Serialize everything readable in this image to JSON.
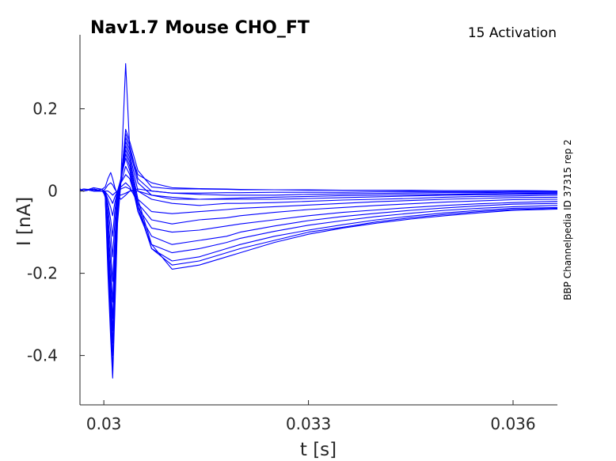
{
  "chart_data": {
    "type": "line",
    "title": "Nav1.7  Mouse  CHO_FT",
    "subtitle": "15  Activation",
    "side_label": "BBP Channelpedia ID 37315 rep 2",
    "xlabel": "t [s]",
    "ylabel": "I [nA]",
    "xlim": [
      0.02965,
      0.03665
    ],
    "ylim": [
      -0.52,
      0.38
    ],
    "xticks": [
      0.03,
      0.033,
      0.036
    ],
    "xtick_labels": [
      "0.03",
      "0.033",
      "0.036"
    ],
    "yticks": [
      -0.4,
      -0.2,
      0,
      0.2
    ],
    "ytick_labels": [
      "-0.4",
      "-0.2",
      "0",
      "0.2"
    ],
    "grid": false,
    "line_color": "#0000ff",
    "series": [
      {
        "x": [
          0.02965,
          0.0297,
          0.02985,
          0.02998,
          0.03002,
          0.03006,
          0.0301,
          0.03013,
          0.03016,
          0.0302,
          0.03025,
          0.03032,
          0.03038,
          0.0305,
          0.0307,
          0.031,
          0.0314,
          0.0318,
          0.032,
          0.0325,
          0.033,
          0.0335,
          0.034,
          0.0345,
          0.035,
          0.0355,
          0.036,
          0.03665
        ],
        "y": [
          0.005,
          0.0,
          0.008,
          0.004,
          -0.015,
          -0.2,
          -0.36,
          -0.455,
          -0.3,
          -0.08,
          0.02,
          0.15,
          0.12,
          0.05,
          0.01,
          0.005,
          0.005,
          0.004,
          0.003,
          0.003,
          0.002,
          0.002,
          0.002,
          0.002,
          0.001,
          0.001,
          0.001,
          0.0
        ]
      },
      {
        "x": [
          0.02965,
          0.0297,
          0.02985,
          0.02998,
          0.03002,
          0.03006,
          0.0301,
          0.03013,
          0.03016,
          0.0302,
          0.03025,
          0.03032,
          0.03038,
          0.0305,
          0.0307,
          0.031,
          0.0314,
          0.0318,
          0.032,
          0.0325,
          0.033,
          0.0335,
          0.034,
          0.0345,
          0.035,
          0.0355,
          0.036,
          0.03665
        ],
        "y": [
          0.0,
          0.005,
          0.003,
          0.0,
          -0.012,
          -0.18,
          -0.34,
          -0.43,
          -0.28,
          -0.07,
          0.03,
          0.31,
          0.1,
          0.04,
          0.02,
          0.008,
          0.006,
          0.005,
          0.004,
          0.003,
          0.003,
          0.002,
          0.002,
          0.001,
          0.001,
          0.001,
          0.001,
          0.0
        ]
      },
      {
        "x": [
          0.02965,
          0.0297,
          0.02985,
          0.02998,
          0.03002,
          0.03006,
          0.0301,
          0.03013,
          0.03016,
          0.0302,
          0.03025,
          0.03032,
          0.03038,
          0.0305,
          0.0307,
          0.031,
          0.0314,
          0.0318,
          0.032,
          0.0325,
          0.033,
          0.0335,
          0.034,
          0.0345,
          0.035,
          0.0355,
          0.036,
          0.03665
        ],
        "y": [
          0.005,
          0.0,
          0.005,
          0.0,
          -0.01,
          -0.16,
          -0.31,
          -0.4,
          -0.25,
          -0.06,
          0.03,
          0.14,
          0.11,
          0.03,
          0.0,
          -0.005,
          -0.008,
          -0.01,
          -0.01,
          -0.01,
          -0.008,
          -0.007,
          -0.006,
          -0.005,
          -0.004,
          -0.004,
          -0.003,
          -0.003
        ]
      },
      {
        "x": [
          0.02965,
          0.0297,
          0.02985,
          0.02998,
          0.03002,
          0.03006,
          0.0301,
          0.03013,
          0.03016,
          0.0302,
          0.03025,
          0.03032,
          0.03038,
          0.0305,
          0.0307,
          0.031,
          0.0314,
          0.0318,
          0.032,
          0.0325,
          0.033,
          0.0335,
          0.034,
          0.0345,
          0.035,
          0.0355,
          0.036,
          0.03665
        ],
        "y": [
          0.0,
          0.005,
          0.0,
          0.0,
          -0.01,
          -0.14,
          -0.28,
          -0.37,
          -0.22,
          -0.05,
          0.03,
          0.13,
          0.1,
          0.02,
          -0.01,
          -0.015,
          -0.02,
          -0.02,
          -0.02,
          -0.02,
          -0.018,
          -0.016,
          -0.014,
          -0.012,
          -0.01,
          -0.009,
          -0.008,
          -0.007
        ]
      },
      {
        "x": [
          0.02965,
          0.0297,
          0.02985,
          0.02998,
          0.03002,
          0.03006,
          0.0301,
          0.03013,
          0.03016,
          0.0302,
          0.03025,
          0.03032,
          0.03038,
          0.0305,
          0.0307,
          0.031,
          0.0314,
          0.0318,
          0.032,
          0.0325,
          0.033,
          0.0335,
          0.034,
          0.0345,
          0.035,
          0.0355,
          0.036,
          0.03665
        ],
        "y": [
          0.005,
          0.0,
          0.005,
          0.0,
          -0.01,
          -0.12,
          -0.25,
          -0.34,
          -0.2,
          -0.04,
          0.03,
          0.12,
          0.09,
          0.0,
          -0.02,
          -0.03,
          -0.035,
          -0.03,
          -0.03,
          -0.028,
          -0.025,
          -0.022,
          -0.02,
          -0.018,
          -0.015,
          -0.013,
          -0.012,
          -0.01
        ]
      },
      {
        "x": [
          0.02965,
          0.0297,
          0.02985,
          0.02998,
          0.03002,
          0.03006,
          0.0301,
          0.03013,
          0.03016,
          0.0302,
          0.03025,
          0.03032,
          0.03038,
          0.0305,
          0.0307,
          0.031,
          0.0314,
          0.0318,
          0.032,
          0.0325,
          0.033,
          0.0335,
          0.034,
          0.0345,
          0.035,
          0.0355,
          0.036,
          0.03665
        ],
        "y": [
          0.0,
          0.005,
          0.0,
          0.0,
          -0.008,
          -0.1,
          -0.22,
          -0.31,
          -0.18,
          -0.03,
          0.03,
          0.11,
          0.08,
          -0.02,
          -0.05,
          -0.055,
          -0.05,
          -0.045,
          -0.042,
          -0.038,
          -0.034,
          -0.03,
          -0.026,
          -0.023,
          -0.02,
          -0.018,
          -0.016,
          -0.015
        ]
      },
      {
        "x": [
          0.02965,
          0.0297,
          0.02985,
          0.02998,
          0.03002,
          0.03006,
          0.0301,
          0.03013,
          0.03016,
          0.0302,
          0.03025,
          0.03032,
          0.03038,
          0.0305,
          0.0307,
          0.031,
          0.0314,
          0.0318,
          0.032,
          0.0325,
          0.033,
          0.0335,
          0.034,
          0.0345,
          0.035,
          0.0355,
          0.036,
          0.03665
        ],
        "y": [
          0.005,
          0.0,
          0.005,
          0.0,
          -0.008,
          -0.08,
          -0.18,
          -0.27,
          -0.15,
          -0.02,
          0.03,
          0.1,
          0.07,
          -0.03,
          -0.07,
          -0.08,
          -0.07,
          -0.065,
          -0.06,
          -0.052,
          -0.045,
          -0.04,
          -0.035,
          -0.031,
          -0.027,
          -0.024,
          -0.021,
          -0.02
        ]
      },
      {
        "x": [
          0.02965,
          0.0297,
          0.02985,
          0.02998,
          0.03002,
          0.03006,
          0.0301,
          0.03013,
          0.03016,
          0.0302,
          0.03025,
          0.03032,
          0.03038,
          0.0305,
          0.0307,
          0.031,
          0.0314,
          0.0318,
          0.032,
          0.0325,
          0.033,
          0.0335,
          0.034,
          0.0345,
          0.035,
          0.0355,
          0.036,
          0.03665
        ],
        "y": [
          0.0,
          0.005,
          0.0,
          0.0,
          -0.006,
          -0.06,
          -0.14,
          -0.22,
          -0.12,
          -0.01,
          0.03,
          0.09,
          0.06,
          -0.04,
          -0.09,
          -0.1,
          -0.095,
          -0.085,
          -0.08,
          -0.07,
          -0.06,
          -0.052,
          -0.046,
          -0.04,
          -0.035,
          -0.031,
          -0.028,
          -0.025
        ]
      },
      {
        "x": [
          0.02965,
          0.0297,
          0.02985,
          0.02998,
          0.03002,
          0.03006,
          0.0301,
          0.03013,
          0.03016,
          0.0302,
          0.03025,
          0.03032,
          0.03038,
          0.0305,
          0.0307,
          0.031,
          0.0314,
          0.0318,
          0.032,
          0.0325,
          0.033,
          0.0335,
          0.034,
          0.0345,
          0.035,
          0.0355,
          0.036,
          0.03665
        ],
        "y": [
          0.005,
          0.0,
          0.005,
          0.0,
          -0.005,
          -0.04,
          -0.1,
          -0.16,
          -0.08,
          0.0,
          0.03,
          0.08,
          0.05,
          -0.05,
          -0.11,
          -0.13,
          -0.12,
          -0.11,
          -0.1,
          -0.085,
          -0.072,
          -0.062,
          -0.054,
          -0.047,
          -0.041,
          -0.036,
          -0.032,
          -0.03
        ]
      },
      {
        "x": [
          0.02965,
          0.0297,
          0.02985,
          0.02998,
          0.03002,
          0.03006,
          0.0301,
          0.03013,
          0.03016,
          0.0302,
          0.03025,
          0.03032,
          0.03038,
          0.0305,
          0.0307,
          0.031,
          0.0314,
          0.0318,
          0.032,
          0.0325,
          0.033,
          0.0335,
          0.034,
          0.0345,
          0.035,
          0.0355,
          0.036,
          0.03665
        ],
        "y": [
          0.0,
          0.005,
          0.0,
          0.0,
          -0.004,
          -0.03,
          -0.07,
          -0.11,
          -0.05,
          0.0,
          0.02,
          0.06,
          0.04,
          -0.05,
          -0.13,
          -0.15,
          -0.14,
          -0.125,
          -0.115,
          -0.098,
          -0.083,
          -0.072,
          -0.062,
          -0.054,
          -0.047,
          -0.042,
          -0.038,
          -0.035
        ]
      },
      {
        "x": [
          0.02965,
          0.0297,
          0.02985,
          0.02998,
          0.03002,
          0.03006,
          0.0301,
          0.03013,
          0.03016,
          0.0302,
          0.03025,
          0.03032,
          0.03038,
          0.0305,
          0.0307,
          0.031,
          0.0314,
          0.0318,
          0.032,
          0.0325,
          0.033,
          0.0335,
          0.034,
          0.0345,
          0.035,
          0.0355,
          0.036,
          0.03665
        ],
        "y": [
          0.005,
          0.0,
          0.005,
          0.0,
          -0.003,
          -0.02,
          -0.04,
          -0.06,
          -0.03,
          0.0,
          0.02,
          0.04,
          0.03,
          -0.04,
          -0.14,
          -0.17,
          -0.16,
          -0.14,
          -0.13,
          -0.11,
          -0.095,
          -0.082,
          -0.07,
          -0.061,
          -0.053,
          -0.047,
          -0.042,
          -0.04
        ]
      },
      {
        "x": [
          0.02965,
          0.0297,
          0.02985,
          0.02998,
          0.03002,
          0.03006,
          0.0301,
          0.03013,
          0.03016,
          0.0302,
          0.03025,
          0.03032,
          0.03038,
          0.0305,
          0.0307,
          0.031,
          0.0314,
          0.0318,
          0.032,
          0.0325,
          0.033,
          0.0335,
          0.034,
          0.0345,
          0.035,
          0.0355,
          0.036,
          0.03665
        ],
        "y": [
          0.0,
          0.005,
          0.0,
          0.0,
          -0.002,
          -0.01,
          -0.02,
          -0.03,
          -0.015,
          0.0,
          0.01,
          0.02,
          0.01,
          -0.03,
          -0.14,
          -0.18,
          -0.17,
          -0.15,
          -0.14,
          -0.12,
          -0.1,
          -0.088,
          -0.075,
          -0.065,
          -0.057,
          -0.05,
          -0.045,
          -0.042
        ]
      },
      {
        "x": [
          0.02965,
          0.0297,
          0.02985,
          0.02998,
          0.03002,
          0.03006,
          0.0301,
          0.03013,
          0.03016,
          0.0302,
          0.03025,
          0.03032,
          0.03038,
          0.0305,
          0.0307,
          0.031,
          0.0314,
          0.0318,
          0.032,
          0.0325,
          0.033,
          0.0335,
          0.034,
          0.0345,
          0.035,
          0.0355,
          0.036,
          0.03665
        ],
        "y": [
          0.005,
          0.0,
          0.005,
          0.0,
          0.0,
          0.0,
          -0.005,
          -0.01,
          -0.005,
          0.0,
          0.005,
          0.01,
          0.005,
          -0.02,
          -0.13,
          -0.19,
          -0.18,
          -0.16,
          -0.15,
          -0.125,
          -0.105,
          -0.09,
          -0.078,
          -0.068,
          -0.06,
          -0.053,
          -0.047,
          -0.044
        ]
      },
      {
        "x": [
          0.02965,
          0.0297,
          0.02985,
          0.02998,
          0.03002,
          0.03006,
          0.0301,
          0.03013,
          0.03016,
          0.0302,
          0.03025,
          0.03032,
          0.03038,
          0.0305,
          0.0307,
          0.031,
          0.0314,
          0.0318,
          0.032,
          0.0325,
          0.033,
          0.0335,
          0.034,
          0.0345,
          0.035,
          0.0355,
          0.036,
          0.03665
        ],
        "y": [
          0.0,
          0.005,
          0.0,
          0.005,
          0.01,
          0.03,
          0.045,
          0.03,
          0.01,
          -0.01,
          -0.02,
          -0.01,
          0.0,
          0.0,
          -0.01,
          -0.02,
          -0.02,
          -0.018,
          -0.017,
          -0.015,
          -0.013,
          -0.011,
          -0.01,
          -0.009,
          -0.008,
          -0.007,
          -0.006,
          -0.005
        ]
      },
      {
        "x": [
          0.02965,
          0.0297,
          0.02985,
          0.02998,
          0.03002,
          0.03006,
          0.0301,
          0.03013,
          0.03016,
          0.0302,
          0.03025,
          0.03032,
          0.03038,
          0.0305,
          0.0307,
          0.031,
          0.0314,
          0.0318,
          0.032,
          0.0325,
          0.033,
          0.0335,
          0.034,
          0.0345,
          0.035,
          0.0355,
          0.036,
          0.03665
        ],
        "y": [
          0.005,
          0.0,
          0.005,
          0.0,
          0.005,
          0.015,
          0.02,
          0.015,
          0.005,
          -0.005,
          -0.01,
          -0.005,
          0.0,
          0.005,
          0.0,
          -0.005,
          -0.005,
          -0.004,
          -0.004,
          -0.003,
          -0.003,
          -0.003,
          -0.002,
          -0.002,
          -0.002,
          -0.002,
          -0.001,
          -0.001
        ]
      }
    ]
  }
}
